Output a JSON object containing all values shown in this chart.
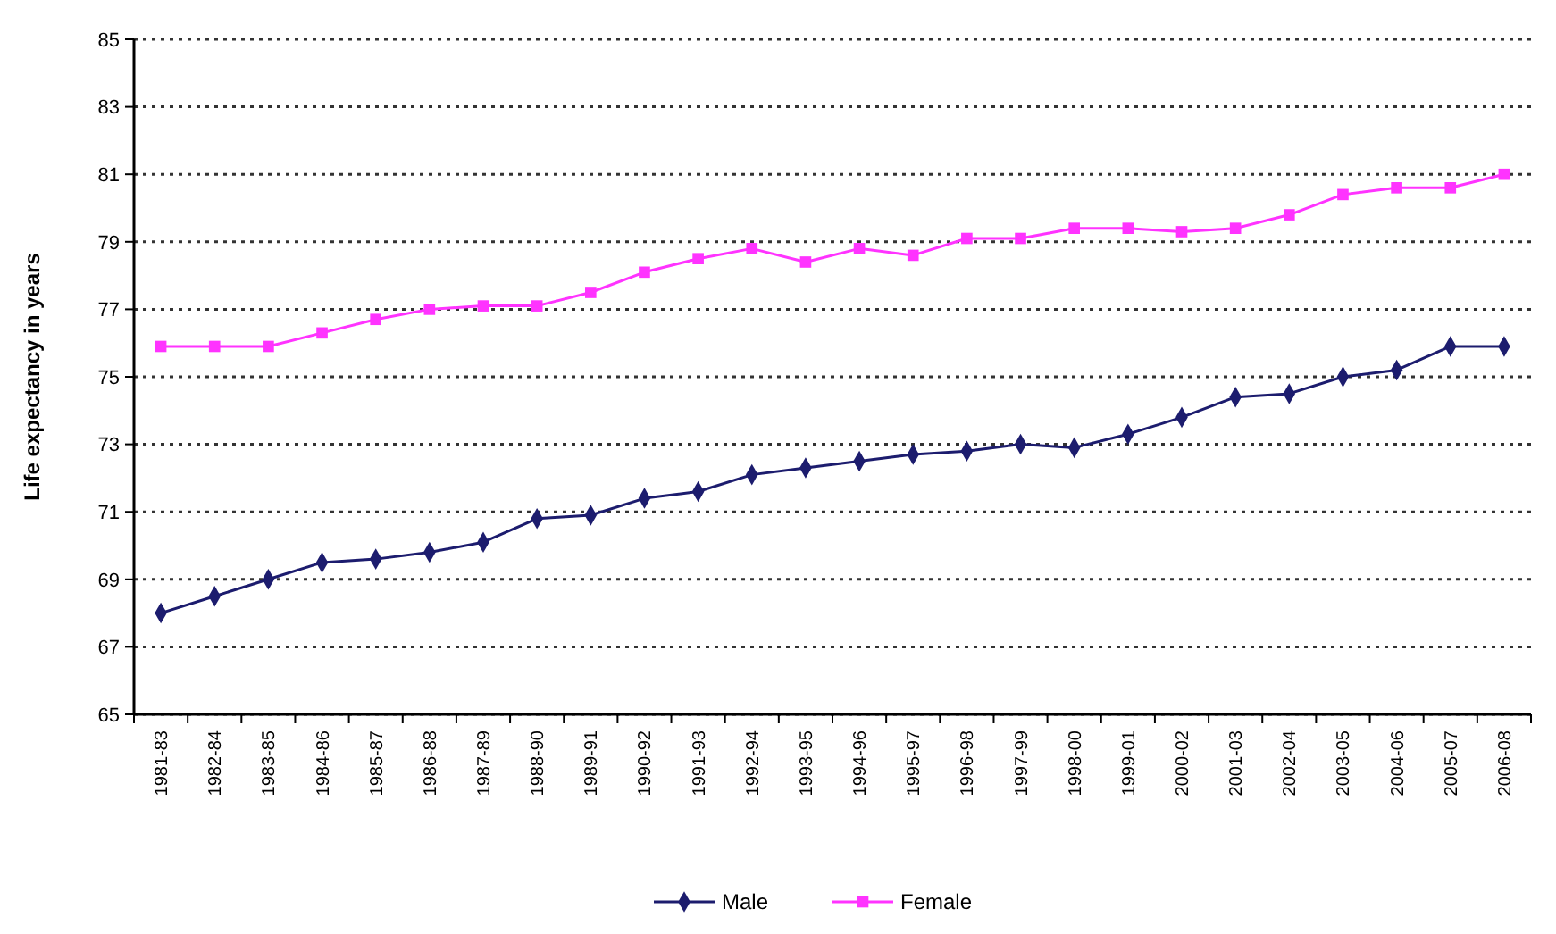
{
  "chart_data": {
    "type": "line",
    "ylabel": "Life expectancy in years",
    "categories": [
      "1981-83",
      "1982-84",
      "1983-85",
      "1984-86",
      "1985-87",
      "1986-88",
      "1987-89",
      "1988-90",
      "1989-91",
      "1990-92",
      "1991-93",
      "1992-94",
      "1993-95",
      "1994-96",
      "1995-97",
      "1996-98",
      "1997-99",
      "1998-00",
      "1999-01",
      "2000-02",
      "2001-03",
      "2002-04",
      "2003-05",
      "2004-06",
      "2005-07",
      "2006-08"
    ],
    "series": [
      {
        "name": "Male",
        "color": "#1c1c6e",
        "marker": "diamond",
        "values": [
          68.0,
          68.5,
          69.0,
          69.5,
          69.6,
          69.8,
          70.1,
          70.8,
          70.9,
          71.4,
          71.6,
          72.1,
          72.3,
          72.5,
          72.7,
          72.8,
          73.0,
          72.9,
          73.3,
          73.8,
          74.4,
          74.5,
          75.0,
          75.2,
          75.9,
          75.9
        ]
      },
      {
        "name": "Female",
        "color": "#ff33ff",
        "marker": "square",
        "values": [
          75.9,
          75.9,
          75.9,
          76.3,
          76.7,
          77.0,
          77.1,
          77.1,
          77.5,
          78.1,
          78.5,
          78.8,
          78.4,
          78.8,
          78.6,
          79.1,
          79.1,
          79.4,
          79.4,
          79.3,
          79.4,
          79.8,
          80.4,
          80.6,
          80.6,
          81.0
        ]
      }
    ],
    "ylim": [
      65,
      85
    ],
    "yticks": [
      65,
      67,
      69,
      71,
      73,
      75,
      77,
      79,
      81,
      83,
      85
    ],
    "grid": "y",
    "legend": "bottom",
    "line_style": "solid"
  }
}
